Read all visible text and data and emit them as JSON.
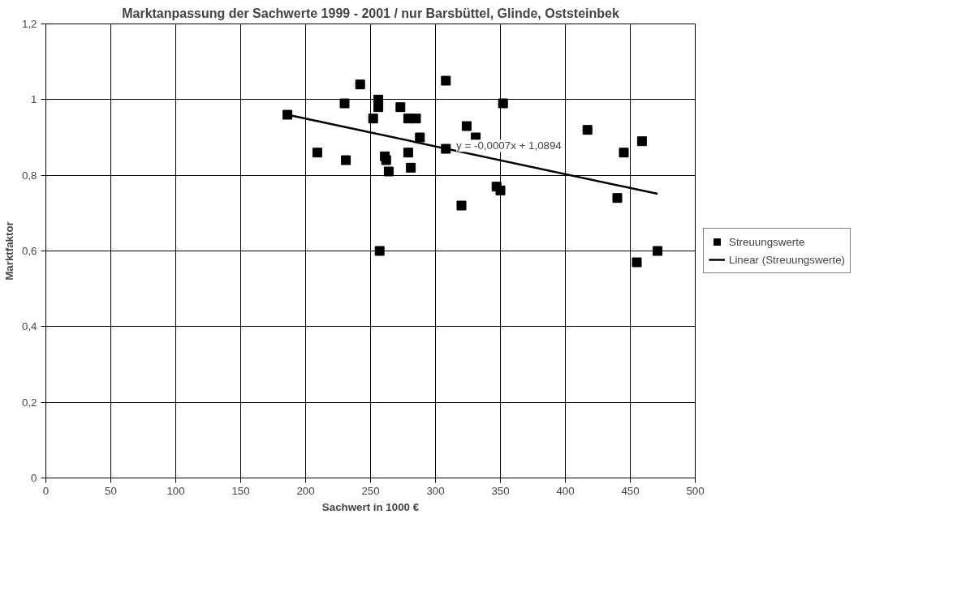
{
  "chart_data": {
    "type": "scatter",
    "title": "Marktanpassung der Sachwerte 1999 - 2001 / nur Barsbüttel, Glinde, Oststeinbek",
    "xlabel": "Sachwert in 1000 €",
    "ylabel": "Marktfaktor",
    "xlim": [
      0,
      500
    ],
    "xticks": [
      0,
      50,
      100,
      150,
      200,
      250,
      300,
      350,
      400,
      450,
      500
    ],
    "ylim": [
      0,
      1.2
    ],
    "yticks": [
      0,
      {
        "value": 0.2,
        "label": "0,2"
      },
      {
        "value": 0.4,
        "label": "0,4"
      },
      {
        "value": 0.6,
        "label": "0,6"
      },
      {
        "value": 0.8,
        "label": "0,8"
      },
      1,
      {
        "value": 1.2,
        "label": "1,2"
      }
    ],
    "grid": true,
    "legend": "right",
    "annotations": [
      {
        "text": "y = -0,0007x + 1,0894",
        "x": 316,
        "y": 0.878
      }
    ],
    "series": [
      {
        "name": "Streuungswerte",
        "color": "#000000",
        "marker": "square",
        "x": [
          186,
          209,
          230,
          231,
          242,
          252,
          256,
          256,
          257,
          261,
          262,
          264,
          273,
          279,
          279,
          281,
          285,
          288,
          308,
          308,
          320,
          324,
          331,
          347,
          350,
          352,
          417,
          440,
          445,
          455,
          459,
          471
        ],
        "values": [
          0.96,
          0.86,
          0.99,
          0.84,
          1.04,
          0.95,
          1.0,
          0.98,
          0.6,
          0.85,
          0.84,
          0.81,
          0.98,
          0.95,
          0.86,
          0.82,
          0.95,
          0.9,
          1.05,
          0.87,
          0.72,
          0.93,
          0.9,
          0.77,
          0.76,
          0.99,
          0.92,
          0.74,
          0.86,
          0.57,
          0.89,
          0.6
        ]
      },
      {
        "name": "Linear (Streuungswerte)",
        "type": "line",
        "color": "#000000",
        "line_style": "solid",
        "x": [
          186,
          471
        ],
        "values": [
          0.96,
          0.751
        ]
      }
    ]
  }
}
